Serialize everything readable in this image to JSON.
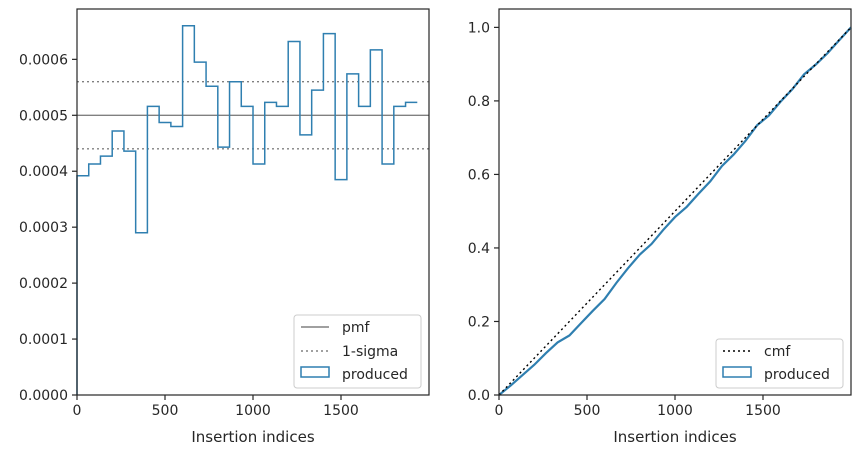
{
  "chart_data": [
    {
      "type": "histogram-step",
      "xlabel": "Insertion indices",
      "ylabel": "",
      "xlim": [
        0,
        2000
      ],
      "ylim": [
        0,
        0.00069
      ],
      "xticks": [
        0,
        500,
        1000,
        1500
      ],
      "xtick_labels": [
        "0",
        "500",
        "1000",
        "1500"
      ],
      "yticks": [
        0,
        0.0001,
        0.0002,
        0.0003,
        0.0004,
        0.0005,
        0.0006
      ],
      "ytick_labels": [
        "0.0000",
        "0.0001",
        "0.0002",
        "0.0003",
        "0.0004",
        "0.0005",
        "0.0006"
      ],
      "bin_width": 66.67,
      "values": [
        0.000392,
        0.000413,
        0.000427,
        0.000472,
        0.000436,
        0.00029,
        0.000516,
        0.000487,
        0.00048,
        0.00066,
        0.000595,
        0.000552,
        0.000443,
        0.00056,
        0.000516,
        0.000413,
        0.000523,
        0.000516,
        0.000632,
        0.000465,
        0.000545,
        0.000646,
        0.000385,
        0.000574,
        0.000516,
        0.000617,
        0.000413,
        0.000516,
        0.000523
      ],
      "lines": [
        {
          "name": "pmf",
          "y": 0.0005,
          "style": "solid",
          "color": "#808080"
        },
        {
          "name": "1-sigma",
          "y": [
            0.00044,
            0.00056
          ],
          "style": "dotted",
          "color": "#808080"
        }
      ],
      "series_name": "produced",
      "series_color": "#2f7fb0",
      "legend": [
        "pmf",
        "1-sigma",
        "produced"
      ],
      "legend_position": "lower-right",
      "grid": false
    },
    {
      "type": "line",
      "xlabel": "Insertion indices",
      "ylabel": "",
      "xlim": [
        0,
        2000
      ],
      "ylim": [
        0,
        1.05
      ],
      "xticks": [
        0,
        500,
        1000,
        1500
      ],
      "xtick_labels": [
        "0",
        "500",
        "1000",
        "1500"
      ],
      "yticks": [
        0,
        0.2,
        0.4,
        0.6,
        0.8,
        1.0
      ],
      "ytick_labels": [
        "0.0",
        "0.2",
        "0.4",
        "0.6",
        "0.8",
        "1.0"
      ],
      "series": [
        {
          "name": "cmf",
          "style": "dotted",
          "color": "#000000",
          "x": [
            0,
            2000
          ],
          "y": [
            0,
            1.0
          ]
        },
        {
          "name": "produced",
          "style": "solid",
          "color": "#2f7fb0",
          "x": [
            0,
            67,
            133,
            200,
            267,
            333,
            400,
            467,
            533,
            600,
            667,
            733,
            800,
            867,
            933,
            1000,
            1067,
            1133,
            1200,
            1267,
            1333,
            1400,
            1467,
            1533,
            1600,
            1667,
            1733,
            1800,
            1867,
            1933,
            2000
          ],
          "y": [
            0,
            0.026,
            0.054,
            0.082,
            0.114,
            0.143,
            0.162,
            0.196,
            0.229,
            0.261,
            0.305,
            0.345,
            0.382,
            0.411,
            0.449,
            0.484,
            0.512,
            0.547,
            0.581,
            0.623,
            0.654,
            0.691,
            0.734,
            0.76,
            0.798,
            0.832,
            0.872,
            0.899,
            0.93,
            0.965,
            1.0
          ]
        }
      ],
      "legend": [
        "cmf",
        "produced"
      ],
      "legend_position": "lower-right",
      "grid": false
    }
  ]
}
